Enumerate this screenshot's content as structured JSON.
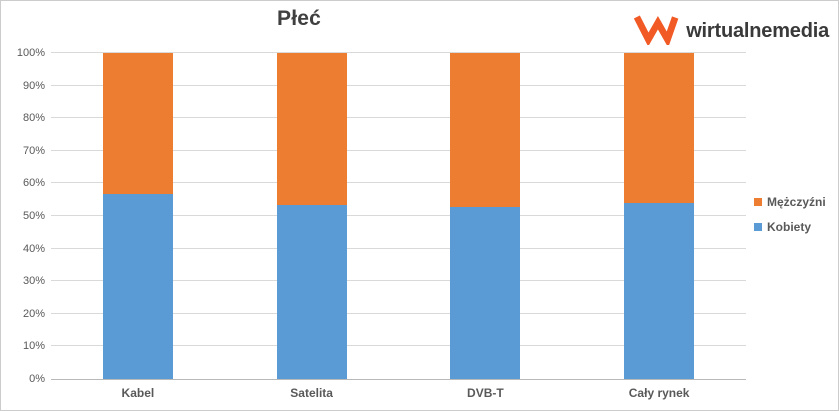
{
  "page": {
    "background": "#ffffff",
    "border_color": "#cccccc"
  },
  "header": {
    "logo": {
      "text": "wirtualnemedia",
      "mark_icon": "wm-zigzag-monogram",
      "mark_color": "#f15a24",
      "text_color": "#3a3a3a"
    }
  },
  "chart_data": {
    "type": "bar",
    "stacked": true,
    "orientation": "vertical",
    "title": "Płeć",
    "categories": [
      "Kabel",
      "Satelita",
      "DVB-T",
      "Cały rynek"
    ],
    "series": [
      {
        "name": "Kobiety",
        "color": "#5b9bd5",
        "values": [
          56.6,
          53.4,
          52.9,
          54.0
        ]
      },
      {
        "name": "Mężczyźni",
        "color": "#ed7d31",
        "values": [
          43.4,
          46.6,
          47.1,
          46.0
        ]
      }
    ],
    "legend_order": [
      "Mężczyźni",
      "Kobiety"
    ],
    "legend_position": "right",
    "xlabel": "",
    "ylabel": "",
    "ylim": [
      0,
      100
    ],
    "ytick_step": 10,
    "ytick_labels": [
      "0%",
      "10%",
      "20%",
      "30%",
      "40%",
      "50%",
      "60%",
      "70%",
      "80%",
      "90%",
      "100%"
    ],
    "grid": true,
    "gridline_color": "#d9d9d9",
    "axis_line_color": "#b9b9b9",
    "tick_label_color": "#595959",
    "title_color": "#404040"
  }
}
